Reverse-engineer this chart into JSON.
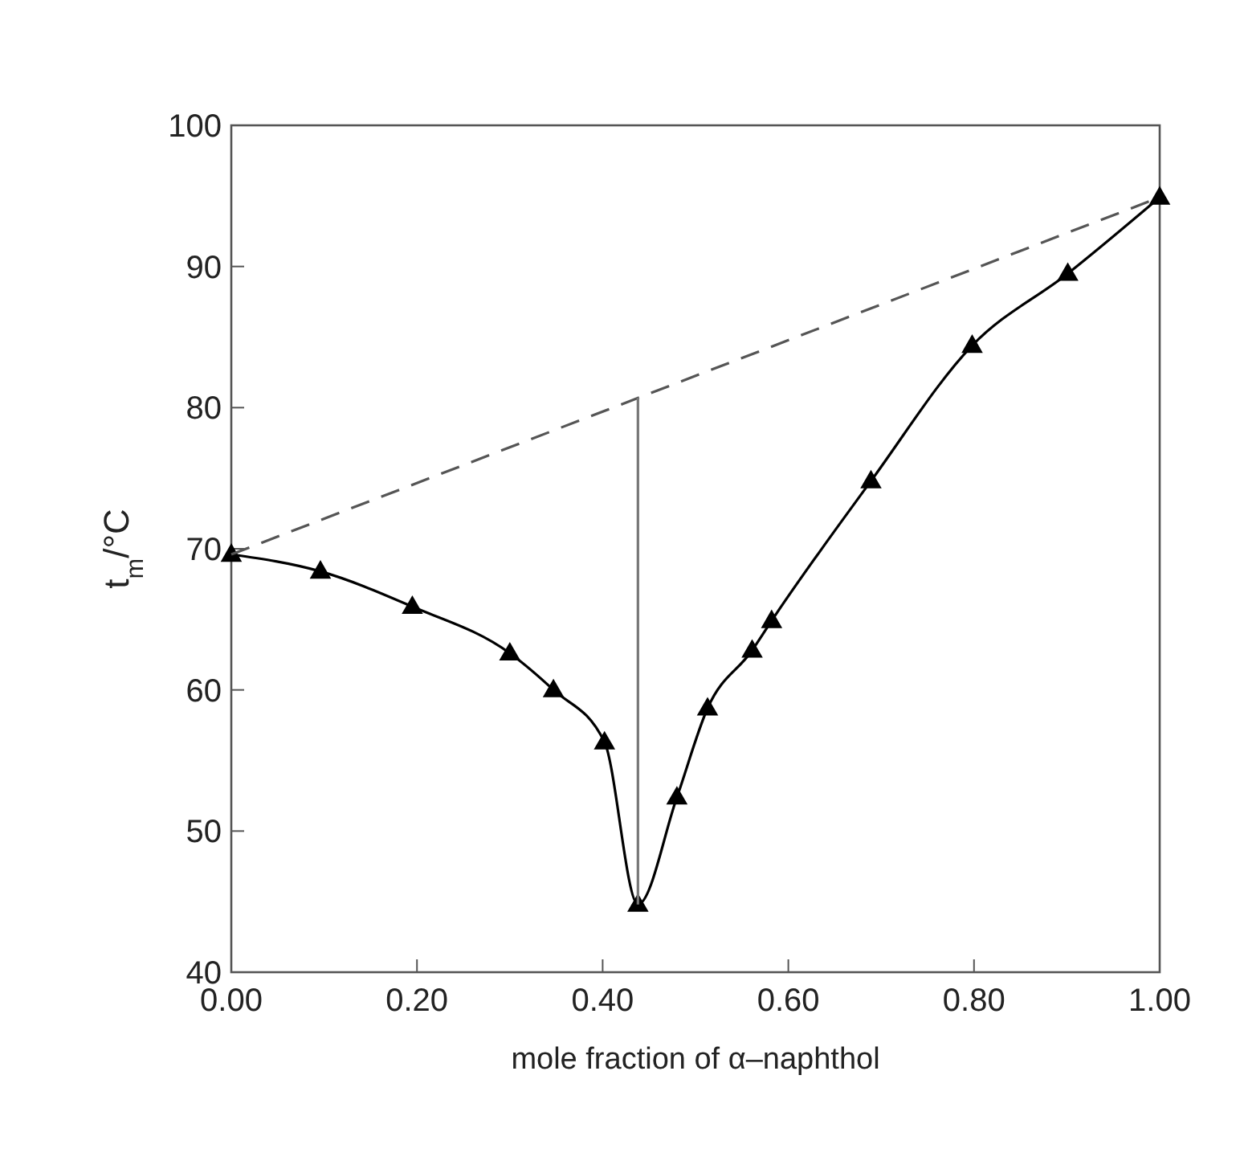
{
  "chart_data": {
    "type": "line",
    "xlabel": "mole fraction of α–naphthol",
    "ylabel": "t$_{m}$/°C",
    "xlim": [
      0,
      1
    ],
    "ylim": [
      40,
      100
    ],
    "xticks": [
      {
        "value": 0,
        "label": "0.00"
      },
      {
        "value": 0.2,
        "label": "0.20"
      },
      {
        "value": 0.4,
        "label": "0.40"
      },
      {
        "value": 0.6,
        "label": "0.60"
      },
      {
        "value": 0.8,
        "label": "0.80"
      },
      {
        "value": 1,
        "label": "1.00"
      }
    ],
    "yticks": [
      40,
      50,
      60,
      70,
      80,
      90,
      100
    ],
    "grid": false,
    "series": [
      {
        "color": "#000000",
        "marker": "triangle",
        "line_style": "solid",
        "x": [
          0,
          0.096,
          0.195,
          0.3,
          0.347,
          0.402,
          0.438,
          0.48,
          0.513,
          0.561,
          0.582,
          0.689,
          0.798,
          0.901,
          1.0
        ],
        "values": [
          69.6,
          68.4,
          65.9,
          62.6,
          60.0,
          56.3,
          44.8,
          52.4,
          58.7,
          62.8,
          64.9,
          74.8,
          84.4,
          89.5,
          94.9
        ]
      },
      {
        "color": "#555555",
        "marker": "none",
        "line_style": "dashed",
        "x": [
          0,
          1
        ],
        "values": [
          69.6,
          94.9
        ]
      },
      {
        "color": "#777777",
        "marker": "none",
        "line_style": "solid",
        "x": [
          0.438,
          0.438
        ],
        "values": [
          44.8,
          80.7
        ]
      }
    ]
  }
}
